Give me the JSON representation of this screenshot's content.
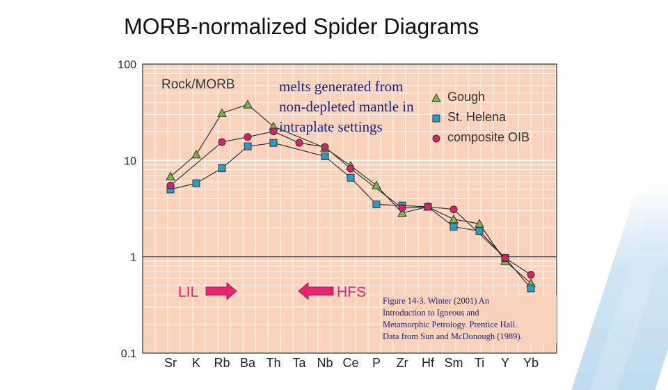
{
  "slide": {
    "title": "MORB-normalized Spider Diagrams"
  },
  "annotation": {
    "lines": [
      "melts generated from",
      "non-depleted mantle in",
      "intraplate settings"
    ]
  },
  "caption": {
    "lines": [
      "Figure 14-3.  Winter (2001) An",
      "Introduction to Igneous and",
      "Metamorphic Petrology. Prentice Hall.",
      "Data from Sun and McDonough (1989)."
    ]
  },
  "chart_data": {
    "type": "line",
    "ylabel_inner": "Rock/MORB",
    "yscale": "log",
    "ylim": [
      0.1,
      100
    ],
    "ytick_labels": [
      "100",
      "10",
      "1",
      "0.1"
    ],
    "ytick_values": [
      100,
      10,
      1,
      0.1
    ],
    "reference_line": 1,
    "grid": true,
    "legend_placement": "top-right",
    "categories": [
      "Sr",
      "K",
      "Rb",
      "Ba",
      "Th",
      "Ta",
      "Nb",
      "Ce",
      "P",
      "Zr",
      "Hf",
      "Sm",
      "Ti",
      "Y",
      "Yb"
    ],
    "series": [
      {
        "name": "Gough",
        "marker": "triangle",
        "color": "#7ab648",
        "values": [
          6.8,
          11.5,
          31,
          38,
          22.5,
          null,
          13.5,
          8.8,
          5.5,
          2.85,
          3.3,
          2.45,
          2.2,
          0.9,
          0.53
        ]
      },
      {
        "name": "St. Helena",
        "marker": "square",
        "color": "#2b9bc6",
        "values": [
          5.0,
          5.8,
          8.3,
          14,
          15.2,
          null,
          11,
          6.6,
          3.5,
          3.4,
          3.3,
          2.05,
          1.85,
          0.97,
          0.47
        ]
      },
      {
        "name": "composite OIB",
        "marker": "circle",
        "color": "#d8206b",
        "values": [
          5.5,
          null,
          15.5,
          17.5,
          20,
          15.2,
          13.8,
          8.2,
          null,
          3.2,
          3.3,
          3.1,
          null,
          0.97,
          0.65
        ]
      }
    ],
    "annotations": [
      {
        "label": "LIL",
        "arrow": "right"
      },
      {
        "label": "HFS",
        "arrow": "left"
      }
    ]
  },
  "colors": {
    "plot_bg": "#f9d2bc",
    "grid": "#ffffff",
    "axis": "#555555",
    "annotation_text": "#1a237e",
    "arrow": "#e8246f"
  }
}
